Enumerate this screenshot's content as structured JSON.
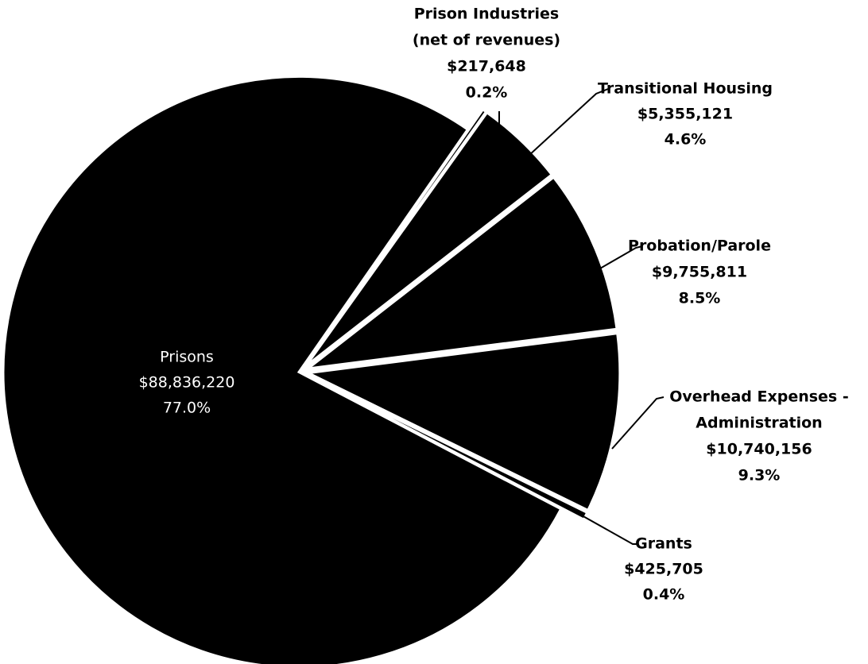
{
  "chart_data": {
    "type": "pie",
    "categories": [
      [
        "Prisons"
      ],
      [
        "Prison Industries",
        "(net of revenues)"
      ],
      [
        "Transitional  Housing"
      ],
      [
        "Probation/Parole"
      ],
      [
        "Overhead Expenses -",
        "Administration"
      ],
      [
        "Grants"
      ]
    ],
    "amount_labels": [
      "$88,836,220",
      "$217,648",
      "$5,355,121",
      "$9,755,811",
      "$10,740,156",
      "$425,705"
    ],
    "values": [
      77.0,
      0.2,
      4.6,
      8.5,
      9.3,
      0.4
    ],
    "value_labels": [
      "77.0%",
      "0.2%",
      "4.6%",
      "8.5%",
      "9.3%",
      "0.4%"
    ],
    "color": "#000000"
  }
}
